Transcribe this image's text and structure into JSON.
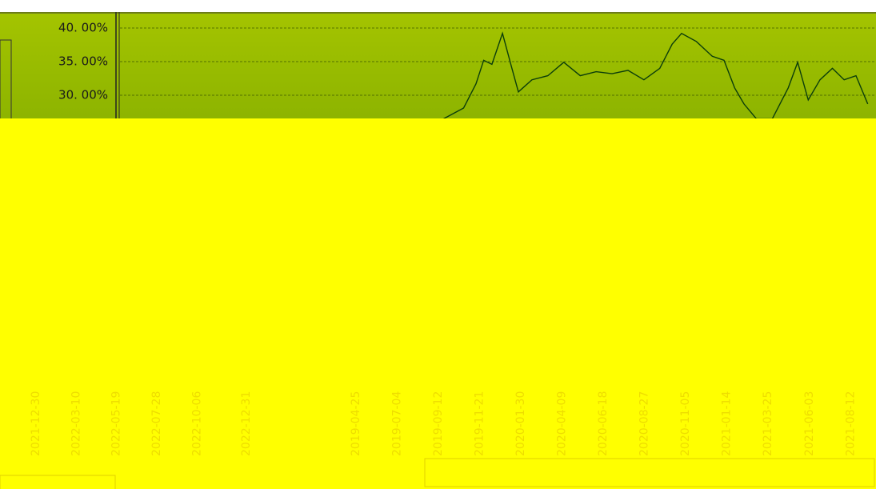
{
  "chart_data": [
    {
      "type": "line",
      "x": [
        "2019-09-21",
        "2019-10-25",
        "2019-11-15",
        "2019-11-28",
        "2019-12-12",
        "2019-12-30",
        "2020-01-15",
        "2020-01-26",
        "2020-02-18",
        "2020-03-16",
        "2020-04-12",
        "2020-05-10",
        "2020-06-06",
        "2020-07-03",
        "2020-07-30",
        "2020-08-26",
        "2020-09-22",
        "2020-10-13",
        "2020-10-29",
        "2020-11-23",
        "2020-12-20",
        "2021-01-09",
        "2021-01-27",
        "2021-02-12",
        "2021-03-05",
        "2021-04-01",
        "2021-04-28",
        "2021-05-14",
        "2021-06-01",
        "2021-06-21",
        "2021-07-12",
        "2021-08-01",
        "2021-08-21",
        "2021-09-10"
      ],
      "values": [
        26.5,
        28.1,
        31.7,
        35.2,
        34.6,
        39.2,
        34.0,
        30.5,
        32.3,
        32.9,
        34.9,
        32.9,
        33.5,
        33.2,
        33.7,
        32.3,
        34.0,
        37.6,
        39.2,
        38.0,
        35.8,
        35.2,
        31.1,
        28.7,
        26.5,
        26.5,
        31.1,
        34.9,
        29.3,
        32.3,
        34.0,
        32.3,
        32.9,
        28.7
      ],
      "color": "#0b3d0b",
      "xlim": [
        "2018-03-18",
        "2021-09-24"
      ],
      "xticks": [
        "2019-04-25",
        "2019-07-04",
        "2019-09-12",
        "2019-11-21",
        "2020-01-30",
        "2020-04-09",
        "2020-06-18",
        "2020-08-27",
        "2020-11-05",
        "2021-01-14",
        "2021-03-25",
        "2021-06-03",
        "2021-08-12"
      ],
      "ylim": [
        20,
        40
      ],
      "yticks": [
        {
          "value": 40,
          "label": "40. 00%"
        },
        {
          "value": 35,
          "label": "35. 00%"
        },
        {
          "value": 30,
          "label": "30. 00%"
        }
      ],
      "grid": true
    },
    {
      "type": "line",
      "xlim": [
        "2021-10-28",
        "2022-12-31"
      ],
      "xticks": [
        "2021-12-30",
        "2022-03-10",
        "2022-05-19",
        "2022-07-28",
        "2022-10-06",
        "2022-12-31"
      ]
    }
  ]
}
